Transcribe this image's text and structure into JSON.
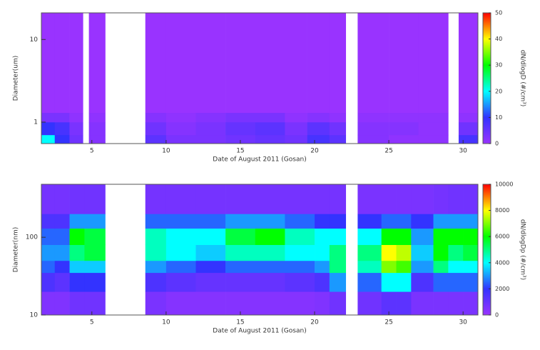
{
  "chart_data": [
    {
      "type": "heatmap",
      "ylabel": "Diameter(um)",
      "xlabel": "Date of August 2011 (Gosan)",
      "colorbar_label": "dN/dlogD (#/cm³)",
      "xlim": [
        1.6,
        31
      ],
      "xticks": [
        5,
        10,
        15,
        20,
        25,
        30
      ],
      "ylim": [
        0.55,
        21
      ],
      "yticks": [
        1,
        10
      ],
      "log_y": true,
      "zlim": [
        0,
        50
      ],
      "zticks": [
        0,
        10,
        20,
        30,
        40,
        50
      ],
      "colormap": [
        "#9933ff",
        "#3333ff",
        "#00ffff",
        "#00ff00",
        "#ffff00",
        "#ff0000"
      ],
      "xbins": [
        1.6,
        2.5,
        3.5,
        4.4,
        4.8,
        5.9,
        8.6,
        10,
        12,
        14,
        16,
        18,
        19.5,
        21,
        22.1,
        22.9,
        25,
        27,
        29,
        29.7,
        31
      ],
      "ybins": [
        0.55,
        0.7,
        1,
        1.3,
        21
      ],
      "z": [
        [
          20,
          10,
          4,
          null,
          2,
          null,
          6,
          3,
          3,
          4,
          5,
          4,
          8,
          6,
          null,
          2,
          1,
          1,
          null,
          8
        ],
        [
          10,
          8,
          3,
          null,
          2,
          null,
          4,
          2,
          3,
          5,
          6,
          3,
          6,
          4,
          null,
          2,
          2,
          1,
          null,
          4
        ],
        [
          3,
          3,
          1,
          null,
          1,
          null,
          2,
          1,
          2,
          3,
          3,
          1,
          2,
          1,
          null,
          1,
          1,
          1,
          null,
          1
        ],
        [
          0,
          0,
          0,
          null,
          0,
          null,
          0,
          0,
          0,
          0,
          0,
          0,
          0,
          0,
          null,
          0,
          0,
          0,
          null,
          0
        ]
      ]
    },
    {
      "type": "heatmap",
      "ylabel": "Diameter(nm)",
      "xlabel": "Date of August 2011 (Gosan)",
      "colorbar_label": "dN/dlogDp (#/cm³)",
      "xlim": [
        1.6,
        31
      ],
      "xticks": [
        5,
        10,
        15,
        20,
        25,
        30
      ],
      "ylim": [
        10,
        480
      ],
      "yticks": [
        10,
        100
      ],
      "log_y": true,
      "zlim": [
        0,
        10000
      ],
      "zticks": [
        0,
        2000,
        4000,
        6000,
        8000,
        10000
      ],
      "colormap": [
        "#9933ff",
        "#3333ff",
        "#00ffff",
        "#00ff00",
        "#ffff00",
        "#ff0000"
      ],
      "xbins": [
        1.6,
        2.5,
        3.5,
        4.5,
        5.9,
        8.6,
        10,
        12,
        14,
        16,
        18,
        20,
        21,
        22.1,
        22.9,
        24.5,
        25.5,
        26.5,
        28,
        29,
        30,
        31
      ],
      "ybins": [
        10,
        20,
        35,
        50,
        80,
        130,
        200,
        480
      ],
      "z": [
        [
          500,
          500,
          800,
          800,
          null,
          600,
          400,
          400,
          400,
          400,
          400,
          500,
          800,
          null,
          800,
          1200,
          1200,
          600,
          600,
          600,
          600
        ],
        [
          1500,
          1200,
          2000,
          2000,
          null,
          1500,
          1200,
          1000,
          1000,
          1000,
          1200,
          1500,
          3000,
          null,
          2500,
          4000,
          4000,
          1500,
          2500,
          2500,
          2500
        ],
        [
          2500,
          2000,
          3500,
          3500,
          null,
          3000,
          2500,
          2000,
          2500,
          2500,
          2500,
          3000,
          5000,
          null,
          4500,
          7000,
          6500,
          3000,
          5000,
          4000,
          4000
        ],
        [
          3000,
          3000,
          5000,
          5500,
          null,
          4500,
          4000,
          3500,
          4500,
          4500,
          4000,
          4000,
          5000,
          null,
          5000,
          8000,
          7500,
          3500,
          6000,
          5000,
          5500
        ],
        [
          2500,
          2500,
          6000,
          5500,
          null,
          4500,
          4000,
          4000,
          5500,
          6000,
          4500,
          4000,
          4000,
          null,
          4000,
          6000,
          6000,
          3000,
          6000,
          6000,
          6000
        ],
        [
          1500,
          1500,
          3000,
          3000,
          null,
          2500,
          2500,
          2500,
          3000,
          3000,
          2500,
          2000,
          2000,
          null,
          2000,
          2500,
          2500,
          2000,
          3000,
          3000,
          3000
        ],
        [
          700,
          700,
          800,
          800,
          null,
          700,
          700,
          700,
          700,
          700,
          700,
          700,
          700,
          null,
          600,
          600,
          600,
          600,
          700,
          800,
          800
        ]
      ]
    }
  ]
}
